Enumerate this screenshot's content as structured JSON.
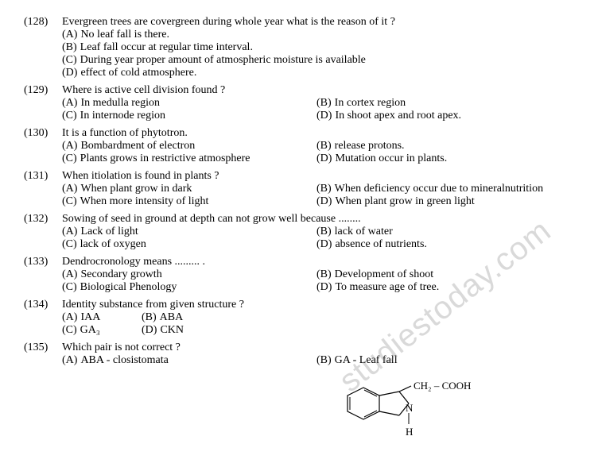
{
  "questions": [
    {
      "num": "(128)",
      "stem": "Evergreen trees are covergreen during whole year what is the reason of it ?",
      "layout": "full",
      "options": [
        {
          "label": "(A)",
          "text": "No leaf fall is there."
        },
        {
          "label": "(B)",
          "text": "Leaf fall occur at regular time interval."
        },
        {
          "label": "(C)",
          "text": "During year proper amount of atmospheric moisture is available"
        },
        {
          "label": "(D)",
          "text": "effect of cold atmosphere."
        }
      ]
    },
    {
      "num": "(129)",
      "stem": "Where is active cell division found ?",
      "layout": "half",
      "options": [
        {
          "label": "(A)",
          "text": "In medulla region"
        },
        {
          "label": "(B)",
          "text": "In cortex region"
        },
        {
          "label": "(C)",
          "text": "In internode region"
        },
        {
          "label": "(D)",
          "text": "In shoot apex and root apex."
        }
      ]
    },
    {
      "num": "(130)",
      "stem": "It is a function of phytotron.",
      "layout": "half",
      "options": [
        {
          "label": "(A)",
          "text": "Bombardment of electron"
        },
        {
          "label": "(B)",
          "text": "release protons."
        },
        {
          "label": "(C)",
          "text": "Plants grows in restrictive atmosphere"
        },
        {
          "label": "(D)",
          "text": "Mutation occur in plants."
        }
      ]
    },
    {
      "num": "(131)",
      "stem": "When itiolation is found in plants ?",
      "layout": "half",
      "options": [
        {
          "label": "(A)",
          "text": "When plant grow in dark"
        },
        {
          "label": "(B)",
          "text": "When deficiency occur due to mineralnutrition"
        },
        {
          "label": "(C)",
          "text": "When more intensity of light"
        },
        {
          "label": "(D)",
          "text": "When plant grow in green light"
        }
      ]
    },
    {
      "num": "(132)",
      "stem": "Sowing of seed in ground at depth can not grow well because ........",
      "layout": "half",
      "options": [
        {
          "label": "(A)",
          "text": "Lack of light"
        },
        {
          "label": "(B)",
          "text": "lack of water"
        },
        {
          "label": "(C)",
          "text": "lack of oxygen"
        },
        {
          "label": "(D)",
          "text": "absence of nutrients."
        }
      ]
    },
    {
      "num": "(133)",
      "stem": "Dendrocronology means ......... .",
      "layout": "half",
      "options": [
        {
          "label": "(A)",
          "text": "Secondary growth"
        },
        {
          "label": "(B)",
          "text": "Development of shoot"
        },
        {
          "label": "(C)",
          "text": "Biological Phenology"
        },
        {
          "label": "(D)",
          "text": "To measure age of tree."
        }
      ]
    },
    {
      "num": "(134)",
      "stem": "Identity substance from given structure ?",
      "layout": "quarter",
      "options": [
        {
          "label": "(A)",
          "text": "IAA"
        },
        {
          "label": "(B)",
          "text": "ABA"
        },
        {
          "label": "(C)",
          "text": "GA₃"
        },
        {
          "label": "(D)",
          "text": "CKN"
        }
      ]
    },
    {
      "num": "(135)",
      "stem": "Which pair is not correct ?",
      "layout": "half",
      "options": [
        {
          "label": "(A)",
          "text": "ABA   - closistomata"
        },
        {
          "label": "(B)",
          "text": "GA - Leaf fall"
        }
      ]
    }
  ],
  "structure_label": "CH₂ – COOH",
  "structure_nh_n": "N",
  "structure_nh_h": "H",
  "watermark": "studiestoday.com",
  "colors": {
    "text": "#000000",
    "bg": "#ffffff",
    "watermark": "rgba(120,120,120,0.28)"
  }
}
